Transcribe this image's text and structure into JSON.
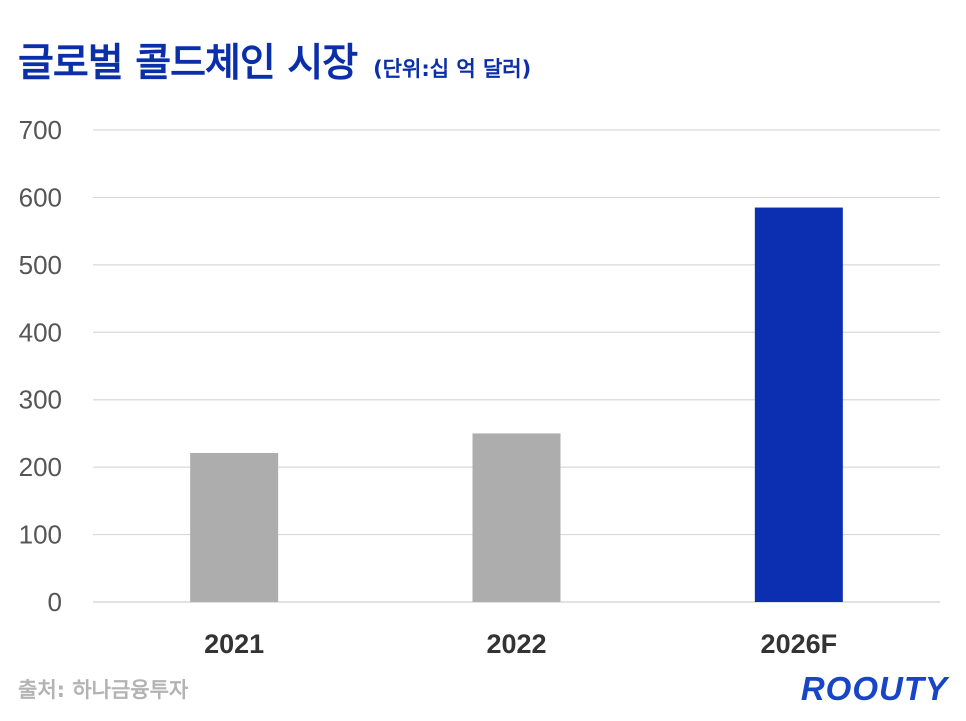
{
  "header": {
    "title": "글로벌 콜드체인 시장",
    "unit": "(단위:십 억 달러)"
  },
  "footer": {
    "source": "출처: 하나금융투자",
    "logo": "ROOUTY"
  },
  "chart_data": {
    "type": "bar",
    "categories": [
      "2021",
      "2022",
      "2026F"
    ],
    "values": [
      221,
      250,
      585
    ],
    "colors": [
      "#adadad",
      "#adadad",
      "#0b2fb0"
    ],
    "ylim": [
      0,
      700
    ],
    "yticks": [
      0,
      100,
      200,
      300,
      400,
      500,
      600,
      700
    ],
    "grid": true,
    "grid_color": "#d9d9d9",
    "xlabel": "",
    "ylabel": ""
  }
}
